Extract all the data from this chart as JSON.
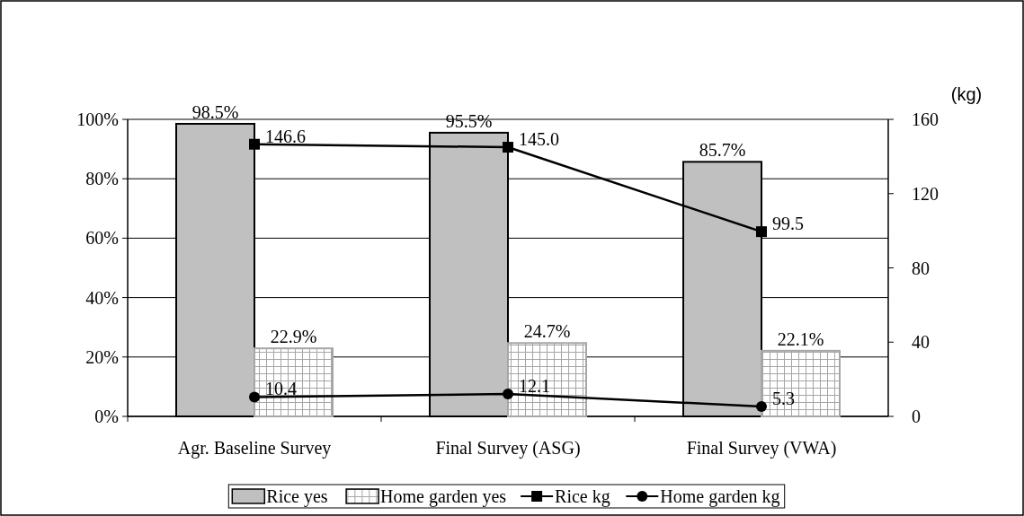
{
  "chart_data": {
    "type": "bar",
    "categories": [
      "Agr. Baseline Survey",
      "Final Survey (ASG)",
      "Final Survey (VWA)"
    ],
    "series": [
      {
        "name": "Rice yes",
        "color": "#c0c0c0",
        "values": [
          98.5,
          95.5,
          85.7
        ],
        "value_labels": [
          "98.5%",
          "95.5%",
          "85.7%"
        ]
      },
      {
        "name": "Home garden yes",
        "color": "#a6a6a6",
        "values": [
          22.9,
          24.7,
          22.1
        ],
        "value_labels": [
          "22.9%",
          "24.7%",
          "22.1%"
        ]
      },
      {
        "name": "Rice kg",
        "type": "line",
        "axis": "y2",
        "marker": "square",
        "color": "#000000",
        "values": [
          146.6,
          145.0,
          99.5
        ],
        "value_labels": [
          "146.6",
          "145.0",
          "99.5"
        ]
      },
      {
        "name": "Home garden kg",
        "type": "line",
        "axis": "y2",
        "marker": "circle",
        "color": "#000000",
        "values": [
          10.4,
          12.1,
          5.3
        ],
        "value_labels": [
          "10.4",
          "12.1",
          "5.3"
        ]
      }
    ],
    "y2label": "(kg)",
    "ylim": [
      0,
      100
    ],
    "yticks": [
      {
        "value": 0,
        "label": "0%"
      },
      {
        "value": 20,
        "label": "20%"
      },
      {
        "value": 40,
        "label": "40%"
      },
      {
        "value": 60,
        "label": "60%"
      },
      {
        "value": 80,
        "label": "80%"
      },
      {
        "value": 100,
        "label": "100%"
      }
    ],
    "y2lim": [
      0,
      160
    ],
    "y2ticks": [
      0,
      40,
      80,
      120,
      160
    ],
    "grid": "y",
    "legend": "bottom",
    "line_style": "solid"
  }
}
